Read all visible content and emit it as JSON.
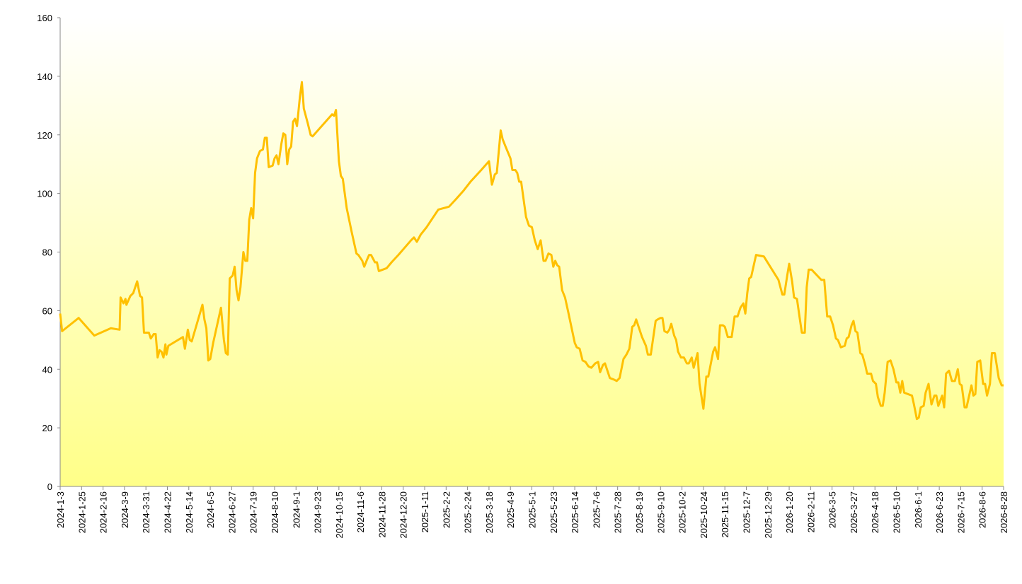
{
  "chart_data": {
    "type": "line",
    "color": "#FFC000",
    "x": [
      "2024-1-3",
      "2024-1-5",
      "2024-1-22",
      "2024-2-7",
      "2024-2-24",
      "2024-3-4",
      "2024-3-5",
      "2024-3-8",
      "2024-3-10",
      "2024-3-11",
      "2024-3-15",
      "2024-3-18",
      "2024-3-22",
      "2024-3-25",
      "2024-3-27",
      "2024-3-29",
      "2024-4-3",
      "2024-4-5",
      "2024-4-8",
      "2024-4-10",
      "2024-4-12",
      "2024-4-14",
      "2024-4-16",
      "2024-4-18",
      "2024-4-20",
      "2024-4-21",
      "2024-4-23",
      "2024-5-8",
      "2024-5-10",
      "2024-5-13",
      "2024-5-15",
      "2024-5-17",
      "2024-5-28",
      "2024-5-30",
      "2024-6-1",
      "2024-6-3",
      "2024-6-5",
      "2024-6-8",
      "2024-6-16",
      "2024-6-19",
      "2024-6-21",
      "2024-6-23",
      "2024-6-25",
      "2024-6-28",
      "2024-6-30",
      "2024-7-2",
      "2024-7-4",
      "2024-7-6",
      "2024-7-9",
      "2024-7-11",
      "2024-7-13",
      "2024-7-15",
      "2024-7-17",
      "2024-7-19",
      "2024-7-21",
      "2024-7-23",
      "2024-7-26",
      "2024-7-29",
      "2024-7-31",
      "2024-8-2",
      "2024-8-4",
      "2024-8-8",
      "2024-8-10",
      "2024-8-12",
      "2024-8-14",
      "2024-8-17",
      "2024-8-19",
      "2024-8-21",
      "2024-8-23",
      "2024-8-25",
      "2024-8-27",
      "2024-8-29",
      "2024-8-31",
      "2024-9-2",
      "2024-9-5",
      "2024-9-7",
      "2024-9-9",
      "2024-9-13",
      "2024-9-16",
      "2024-9-18",
      "2024-10-8",
      "2024-10-10",
      "2024-10-12",
      "2024-10-15",
      "2024-10-17",
      "2024-10-19",
      "2024-10-23",
      "2024-10-28",
      "2024-11-2",
      "2024-11-4",
      "2024-11-8",
      "2024-11-10",
      "2024-11-13",
      "2024-11-15",
      "2024-11-17",
      "2024-11-21",
      "2024-11-23",
      "2024-11-25",
      "2024-12-3",
      "2024-12-8",
      "2024-12-15",
      "2024-12-28",
      "2024-12-31",
      "2025-1-3",
      "2025-1-7",
      "2025-1-13",
      "2025-1-19",
      "2025-1-25",
      "2025-2-5",
      "2025-2-12",
      "2025-2-20",
      "2025-2-27",
      "2025-3-10",
      "2025-3-18",
      "2025-3-21",
      "2025-3-24",
      "2025-3-26",
      "2025-3-30",
      "2025-4-1",
      "2025-4-4",
      "2025-4-9",
      "2025-4-11",
      "2025-4-14",
      "2025-4-16",
      "2025-4-18",
      "2025-4-20",
      "2025-4-25",
      "2025-4-28",
      "2025-5-1",
      "2025-5-4",
      "2025-5-7",
      "2025-5-10",
      "2025-5-13",
      "2025-5-15",
      "2025-5-18",
      "2025-5-21",
      "2025-5-23",
      "2025-5-25",
      "2025-5-27",
      "2025-5-29",
      "2025-6-1",
      "2025-6-4",
      "2025-6-7",
      "2025-6-14",
      "2025-6-16",
      "2025-6-19",
      "2025-6-22",
      "2025-6-25",
      "2025-6-28",
      "2025-7-1",
      "2025-7-5",
      "2025-7-8",
      "2025-7-10",
      "2025-7-13",
      "2025-7-15",
      "2025-7-18",
      "2025-7-20",
      "2025-7-24",
      "2025-7-27",
      "2025-7-30",
      "2025-8-3",
      "2025-8-6",
      "2025-8-9",
      "2025-8-12",
      "2025-8-14",
      "2025-8-16",
      "2025-8-19",
      "2025-8-22",
      "2025-8-26",
      "2025-8-28",
      "2025-8-31",
      "2025-9-5",
      "2025-9-7",
      "2025-9-10",
      "2025-9-12",
      "2025-9-14",
      "2025-9-17",
      "2025-9-19",
      "2025-9-21",
      "2025-9-24",
      "2025-9-26",
      "2025-9-28",
      "2025-10-1",
      "2025-10-4",
      "2025-10-7",
      "2025-10-9",
      "2025-10-12",
      "2025-10-14",
      "2025-10-18",
      "2025-10-20",
      "2025-10-24",
      "2025-10-27",
      "2025-10-29",
      "2025-11-3",
      "2025-11-5",
      "2025-11-8",
      "2025-11-10",
      "2025-11-13",
      "2025-11-15",
      "2025-11-18",
      "2025-11-22",
      "2025-11-25",
      "2025-11-28",
      "2025-12-1",
      "2025-12-4",
      "2025-12-6",
      "2025-12-8",
      "2025-12-10",
      "2025-12-12",
      "2025-12-14",
      "2025-12-17",
      "2025-12-25",
      "2026-1-9",
      "2026-1-13",
      "2026-1-15",
      "2026-1-18",
      "2026-1-20",
      "2026-1-23",
      "2026-1-25",
      "2026-1-28",
      "2026-1-31",
      "2026-2-2",
      "2026-2-5",
      "2026-2-7",
      "2026-2-9",
      "2026-2-12",
      "2026-2-22",
      "2026-2-25",
      "2026-2-28",
      "2026-3-3",
      "2026-3-6",
      "2026-3-9",
      "2026-3-11",
      "2026-3-14",
      "2026-3-18",
      "2026-3-20",
      "2026-3-22",
      "2026-3-25",
      "2026-3-27",
      "2026-3-29",
      "2026-3-31",
      "2026-4-3",
      "2026-4-5",
      "2026-4-8",
      "2026-4-10",
      "2026-4-14",
      "2026-4-16",
      "2026-4-19",
      "2026-4-21",
      "2026-4-24",
      "2026-4-26",
      "2026-4-28",
      "2026-5-1",
      "2026-5-4",
      "2026-5-7",
      "2026-5-10",
      "2026-5-12",
      "2026-5-14",
      "2026-5-16",
      "2026-5-18",
      "2026-5-26",
      "2026-5-28",
      "2026-5-31",
      "2026-6-2",
      "2026-6-4",
      "2026-6-7",
      "2026-6-9",
      "2026-6-12",
      "2026-6-15",
      "2026-6-18",
      "2026-6-20",
      "2026-6-22",
      "2026-6-26",
      "2026-6-28",
      "2026-6-30",
      "2026-7-3",
      "2026-7-6",
      "2026-7-9",
      "2026-7-12",
      "2026-7-14",
      "2026-7-16",
      "2026-7-19",
      "2026-7-21",
      "2026-7-26",
      "2026-7-28",
      "2026-7-30",
      "2026-8-1",
      "2026-8-4",
      "2026-8-7",
      "2026-8-9",
      "2026-8-11",
      "2026-8-14",
      "2026-8-16",
      "2026-8-19",
      "2026-8-23",
      "2026-8-26",
      "2026-8-28"
    ],
    "values": [
      59,
      53,
      57.5,
      51.5,
      54,
      53.5,
      64.5,
      62.5,
      64,
      62,
      65,
      66,
      70,
      65,
      64.5,
      52.5,
      52.5,
      50.5,
      52,
      52,
      44,
      46.5,
      46,
      44,
      48.5,
      45,
      48,
      51,
      47,
      53.5,
      50,
      49.5,
      62,
      57,
      54,
      43,
      43.5,
      49,
      61,
      50,
      45.5,
      45,
      71,
      72,
      75,
      67,
      63.5,
      68,
      80,
      77,
      77,
      91,
      95,
      91.5,
      107,
      112,
      114.5,
      115,
      119,
      119,
      109,
      109.5,
      112,
      113,
      110,
      117,
      120.5,
      120,
      110,
      115,
      116,
      124.5,
      125.5,
      123,
      133,
      138,
      129,
      124,
      120,
      119.5,
      127,
      126.5,
      128.5,
      111,
      106,
      105,
      95,
      87,
      79.5,
      79,
      77,
      75,
      77.5,
      79,
      79,
      76.5,
      76.5,
      73.5,
      74.5,
      76.5,
      79,
      84,
      85,
      83.5,
      86,
      88.5,
      91.5,
      94.5,
      95.5,
      98,
      101,
      104,
      108,
      111,
      103,
      106.5,
      107,
      121.5,
      118.5,
      116,
      112,
      108,
      108,
      107,
      104,
      104,
      92,
      89,
      88.5,
      84,
      81,
      84,
      77,
      77,
      79.5,
      79,
      75,
      77,
      75.5,
      75,
      67,
      64.5,
      60,
      49,
      47.5,
      47,
      43,
      42.5,
      41,
      40.5,
      42,
      42.5,
      39,
      41.5,
      42,
      39,
      37,
      36.5,
      36,
      37,
      43.5,
      45,
      47,
      54.5,
      55,
      57,
      54,
      51,
      48,
      45,
      45,
      56.5,
      57,
      57.5,
      57.5,
      53,
      52.5,
      53.5,
      55.5,
      51.5,
      50,
      46,
      44,
      44,
      42,
      42,
      44,
      40.5,
      45.5,
      35,
      26.5,
      37.5,
      37.5,
      46,
      47.5,
      43.5,
      55,
      55,
      54.5,
      51,
      51,
      58,
      58,
      61,
      62.5,
      59,
      66,
      71,
      71.5,
      74.5,
      79,
      78.5,
      70.5,
      65.5,
      65.5,
      72,
      76,
      70,
      64.5,
      64,
      57,
      52.5,
      52.5,
      68,
      74,
      74,
      70.5,
      70.5,
      58,
      58,
      55,
      50.5,
      50,
      47.5,
      48,
      50.5,
      51,
      55,
      56.5,
      53,
      52.5,
      45.5,
      45,
      41.5,
      38.5,
      38.5,
      36,
      35,
      30.5,
      27.5,
      27.5,
      32,
      42.5,
      43,
      40,
      35.5,
      35.5,
      32,
      36,
      32,
      31,
      28,
      23,
      23.5,
      27,
      27.5,
      32,
      35,
      28,
      31,
      31,
      27.5,
      31,
      27,
      38.5,
      39.5,
      36,
      36,
      40,
      35,
      34.5,
      27,
      27,
      34.5,
      31,
      31.5,
      42.5,
      43,
      35,
      35,
      31,
      35,
      45.5,
      45.5,
      37,
      34.5,
      34.5
    ],
    "xlim": [
      "2024-1-3",
      "2026-8-28"
    ],
    "xticks": [
      "2024-1-3",
      "2024-1-25",
      "2024-2-16",
      "2024-3-9",
      "2024-3-31",
      "2024-4-22",
      "2024-5-14",
      "2024-6-5",
      "2024-6-27",
      "2024-7-19",
      "2024-8-10",
      "2024-9-1",
      "2024-9-23",
      "2024-10-15",
      "2024-11-6",
      "2024-11-28",
      "2024-12-20",
      "2025-1-11",
      "2025-2-2",
      "2025-2-24",
      "2025-3-18",
      "2025-4-9",
      "2025-5-1",
      "2025-5-23",
      "2025-6-14",
      "2025-7-6",
      "2025-7-28",
      "2025-8-19",
      "2025-9-10",
      "2025-10-2",
      "2025-10-24",
      "2025-11-15",
      "2025-12-7",
      "2025-12-29",
      "2026-1-20",
      "2026-2-11",
      "2026-3-5",
      "2026-3-27",
      "2026-4-18",
      "2026-5-10",
      "2026-6-1",
      "2026-6-23",
      "2026-7-15",
      "2026-8-6",
      "2026-8-28"
    ],
    "ylim": [
      0,
      160
    ],
    "yticks": [
      0,
      20,
      40,
      60,
      80,
      100,
      120,
      140,
      160
    ]
  }
}
